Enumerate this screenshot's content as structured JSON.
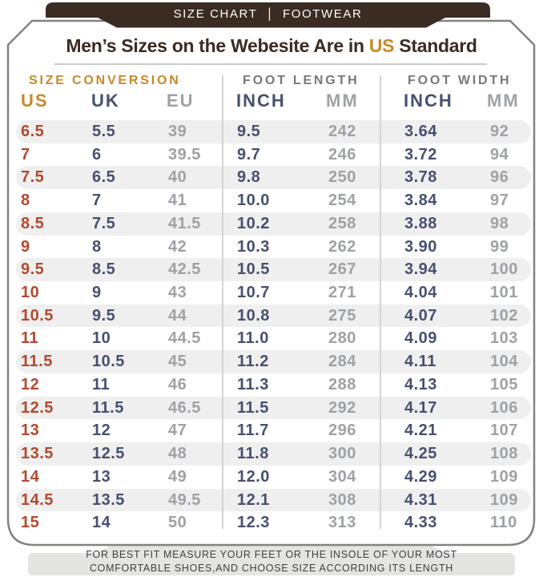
{
  "banner": {
    "left": "SIZE CHART",
    "separator": "|",
    "right": "FOOTWEAR"
  },
  "title": {
    "prefix": "Men’s Sizes on the Webesite Are in ",
    "highlight": "US",
    "suffix": " Standard"
  },
  "chart_data": {
    "type": "table",
    "title": "Men's Sizes on the Webesite Are in US Standard",
    "column_groups": [
      {
        "label": "SIZE CONVERSION",
        "columns": [
          "US",
          "UK",
          "EU"
        ]
      },
      {
        "label": "FOOT LENGTH",
        "columns": [
          "INCH",
          "MM"
        ]
      },
      {
        "label": "FOOT WIDTH",
        "columns": [
          "INCH",
          "MM"
        ]
      }
    ],
    "columns": [
      "US",
      "UK",
      "EU",
      "INCH",
      "MM",
      "INCH",
      "MM"
    ],
    "rows": [
      [
        "6.5",
        "5.5",
        "39",
        "9.5",
        "242",
        "3.64",
        "92"
      ],
      [
        "7",
        "6",
        "39.5",
        "9.7",
        "246",
        "3.72",
        "94"
      ],
      [
        "7.5",
        "6.5",
        "40",
        "9.8",
        "250",
        "3.78",
        "96"
      ],
      [
        "8",
        "7",
        "41",
        "10.0",
        "254",
        "3.84",
        "97"
      ],
      [
        "8.5",
        "7.5",
        "41.5",
        "10.2",
        "258",
        "3.88",
        "98"
      ],
      [
        "9",
        "8",
        "42",
        "10.3",
        "262",
        "3.90",
        "99"
      ],
      [
        "9.5",
        "8.5",
        "42.5",
        "10.5",
        "267",
        "3.94",
        "100"
      ],
      [
        "10",
        "9",
        "43",
        "10.7",
        "271",
        "4.04",
        "101"
      ],
      [
        "10.5",
        "9.5",
        "44",
        "10.8",
        "275",
        "4.07",
        "102"
      ],
      [
        "11",
        "10",
        "44.5",
        "11.0",
        "280",
        "4.09",
        "103"
      ],
      [
        "11.5",
        "10.5",
        "45",
        "11.2",
        "284",
        "4.11",
        "104"
      ],
      [
        "12",
        "11",
        "46",
        "11.3",
        "288",
        "4.13",
        "105"
      ],
      [
        "12.5",
        "11.5",
        "46.5",
        "11.5",
        "292",
        "4.17",
        "106"
      ],
      [
        "13",
        "12",
        "47",
        "11.7",
        "296",
        "4.21",
        "107"
      ],
      [
        "13.5",
        "12.5",
        "48",
        "11.8",
        "300",
        "4.25",
        "108"
      ],
      [
        "14",
        "13",
        "49",
        "12.0",
        "304",
        "4.29",
        "109"
      ],
      [
        "14.5",
        "13.5",
        "49.5",
        "12.1",
        "308",
        "4.31",
        "109"
      ],
      [
        "15",
        "14",
        "50",
        "12.3",
        "313",
        "4.33",
        "110"
      ]
    ]
  },
  "footer": {
    "line1": "FOR BEST FIT MEASURE YOUR FEET OR THE INSOLE OF YOUR MOST",
    "line2": "COMFORTABLE SHOES,AND CHOOSE SIZE ACCORDING ITS LENGTH"
  },
  "colors": {
    "brown": "#3A2B23",
    "orange": "#C8882A",
    "rust": "#B3492E",
    "navy": "#47506E",
    "gray-light": "#9EA1A5",
    "gray-mid": "#76787B",
    "stripe": "#EFEFEF",
    "card-border": "#828282",
    "divider": "#D2D3D4",
    "underline": "#B9B9B9",
    "footer-bg": "#E4E4E3",
    "footer-text": "#3F3F3F"
  }
}
